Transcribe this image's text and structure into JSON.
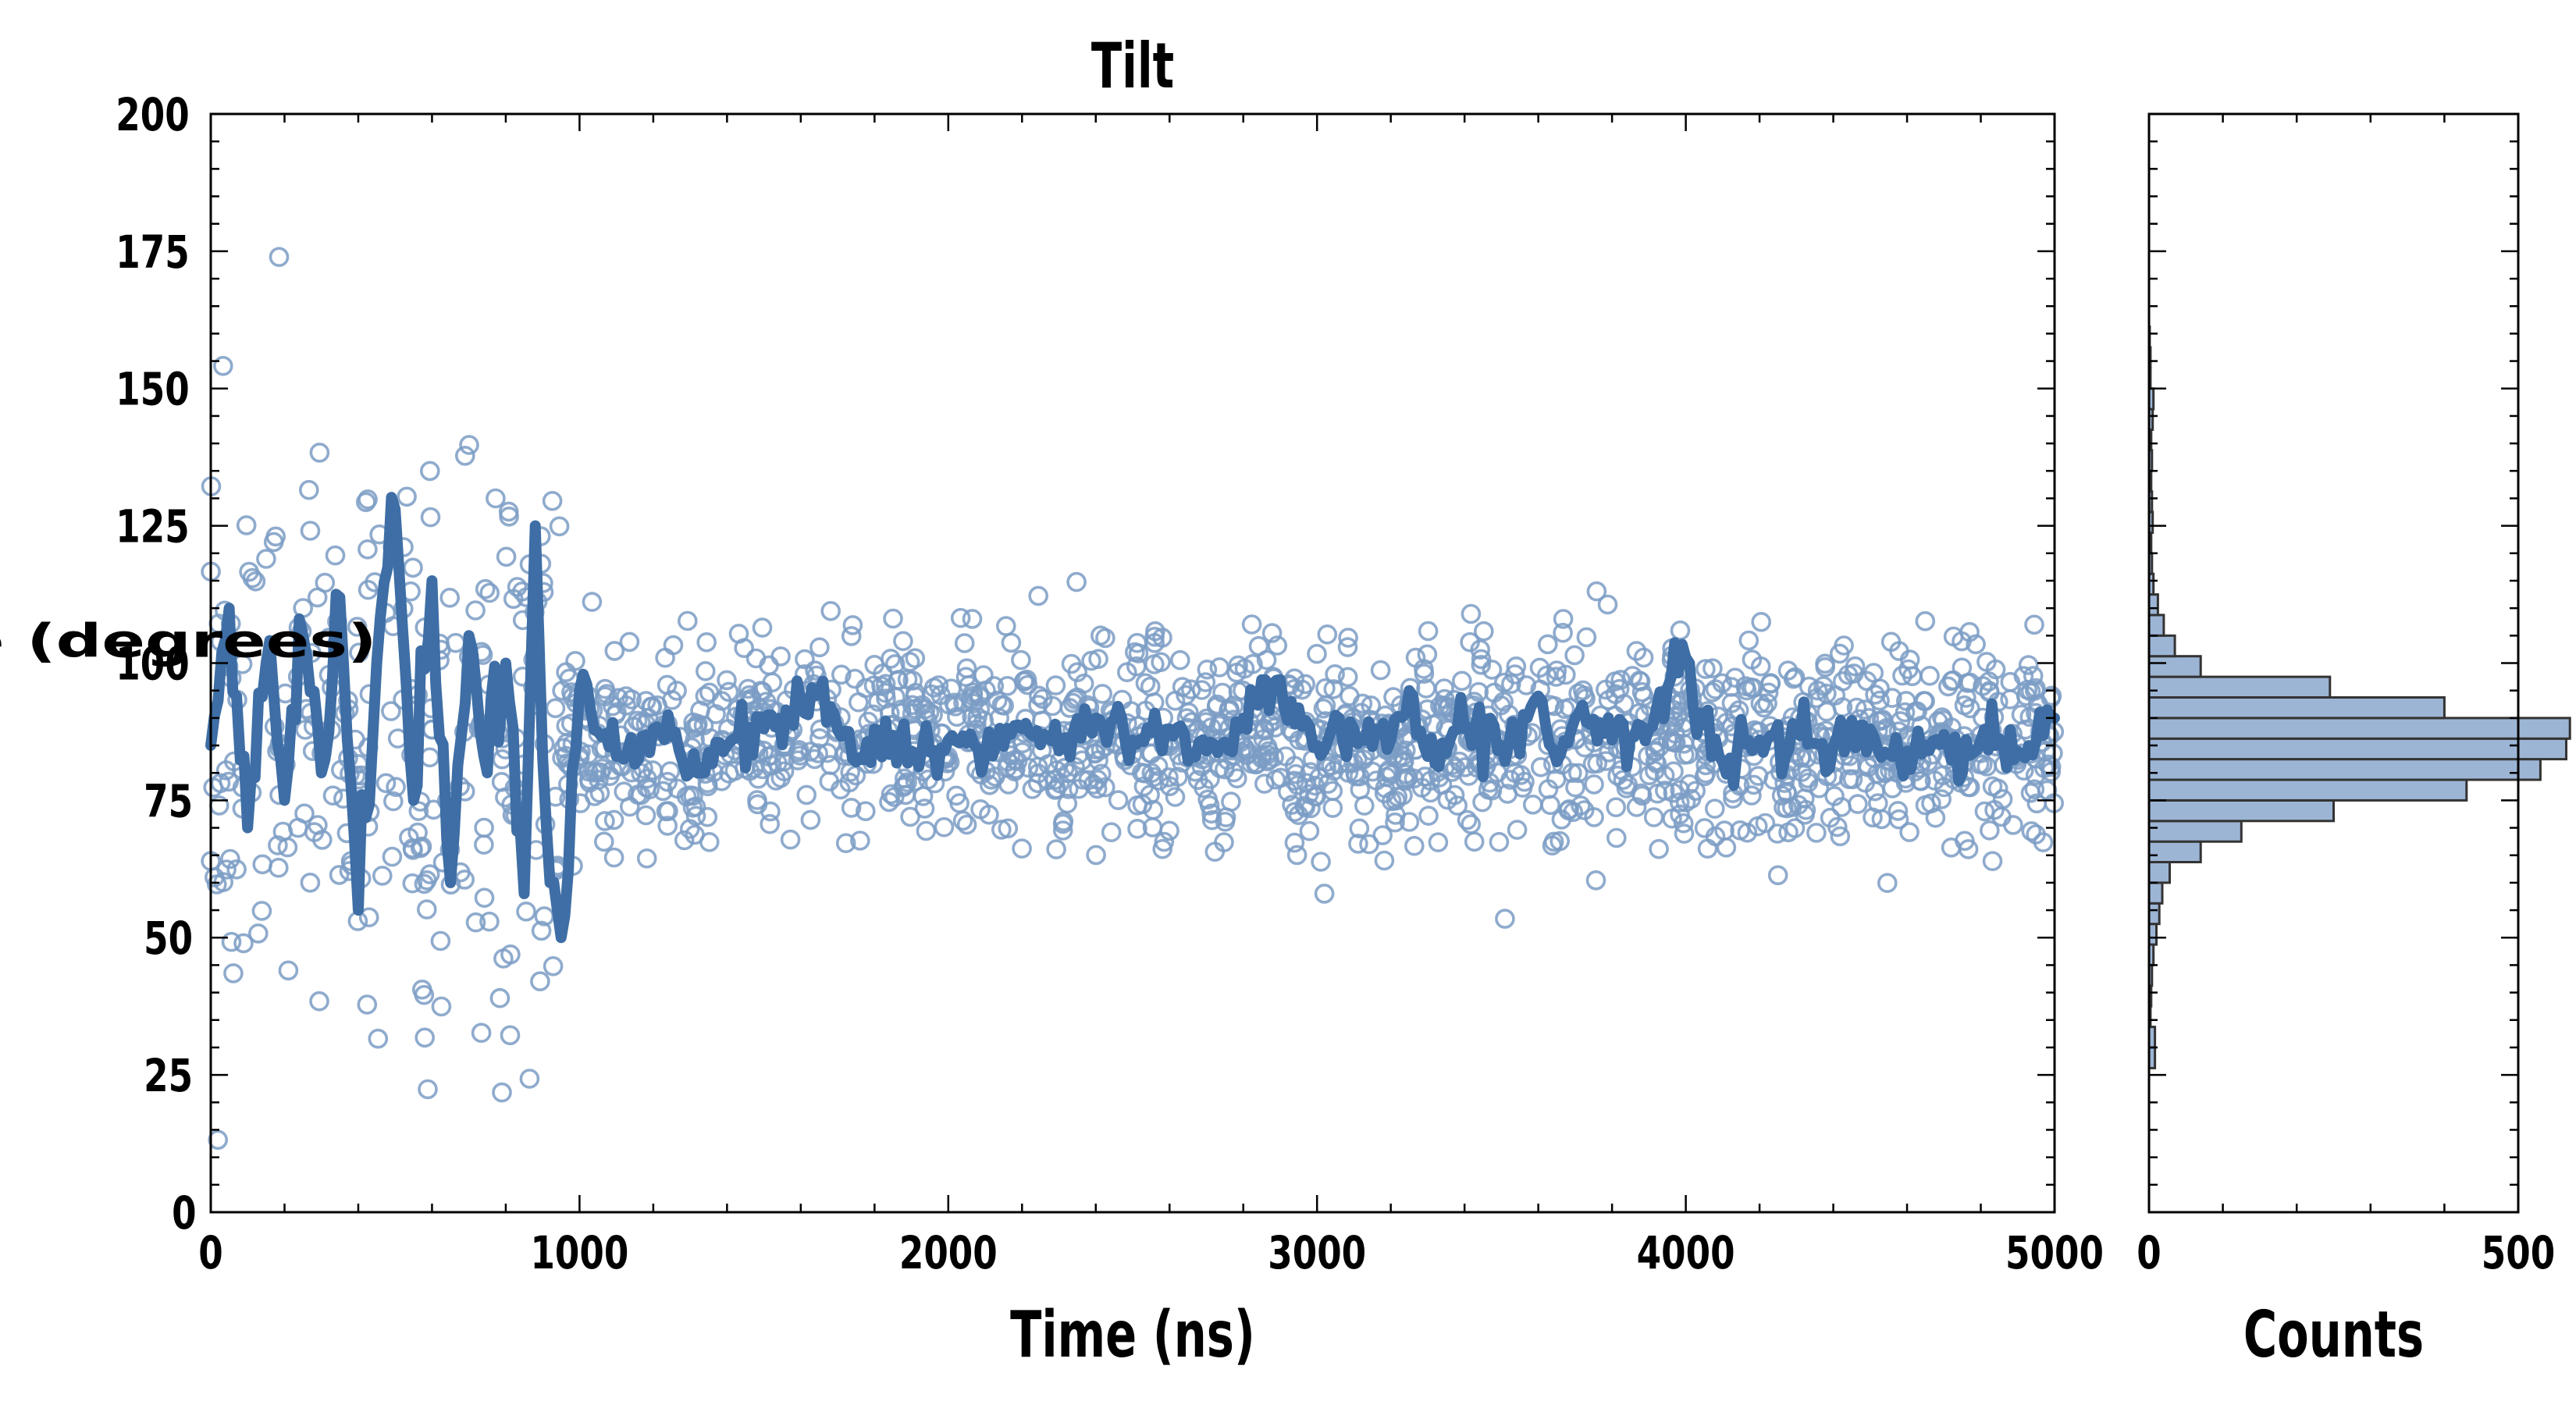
{
  "chart_data": [
    {
      "type": "scatter",
      "title": "Tilt",
      "xlabel": "Time (ns)",
      "ylabel": "Angle (degrees)",
      "xlim": [
        0,
        5000
      ],
      "ylim": [
        0,
        200
      ],
      "xticks": [
        "0",
        "1000",
        "2000",
        "3000",
        "4000",
        "5000"
      ],
      "yticks": [
        "0",
        "25",
        "50",
        "75",
        "100",
        "125",
        "150",
        "175",
        "200"
      ],
      "series": [
        {
          "kind": "scatter",
          "marker": "open-circle",
          "color": "#7b9cc4",
          "segments": [
            {
              "x_range": [
                0,
                950
              ],
              "approx_count": 260,
              "mean": 87,
              "spread": 40,
              "min": 10,
              "max": 175
            },
            {
              "x_range": [
                950,
                5000
              ],
              "approx_count": 1500,
              "mean": 86,
              "spread": 9,
              "min": 48,
              "max": 115
            }
          ]
        },
        {
          "kind": "line",
          "color": "#3e6ea5",
          "x": [
            0,
            50,
            100,
            150,
            200,
            250,
            300,
            350,
            400,
            450,
            500,
            550,
            600,
            650,
            700,
            750,
            800,
            850,
            880,
            920,
            950,
            1000,
            1100,
            1200,
            1300,
            1400,
            1500,
            1650,
            1750,
            1800,
            1900,
            2000,
            2100,
            2200,
            2300,
            2400,
            2500,
            2600,
            2700,
            2800,
            2900,
            3000,
            3100,
            3200,
            3250,
            3300,
            3400,
            3500,
            3600,
            3650,
            3700,
            3800,
            3900,
            4000,
            4020,
            4100,
            4200,
            4300,
            4400,
            4500,
            4600,
            4700,
            4750,
            4800,
            4900,
            5000
          ],
          "y": [
            85,
            110,
            70,
            100,
            75,
            105,
            80,
            112,
            55,
            100,
            128,
            75,
            115,
            60,
            105,
            80,
            100,
            58,
            125,
            60,
            50,
            95,
            83,
            88,
            80,
            85,
            88,
            95,
            82,
            88,
            84,
            86,
            83,
            88,
            84,
            90,
            86,
            88,
            84,
            90,
            97,
            85,
            88,
            86,
            95,
            83,
            88,
            85,
            94,
            82,
            90,
            86,
            88,
            101,
            92,
            82,
            86,
            88,
            85,
            88,
            84,
            87,
            80,
            86,
            84,
            90
          ]
        }
      ]
    },
    {
      "type": "bar",
      "orientation": "horizontal",
      "xlabel": "Counts",
      "ylabel": "",
      "xlim": [
        0,
        500
      ],
      "ylim": [
        0,
        200
      ],
      "xticks": [
        "0",
        "500"
      ],
      "color": "#9cb5d4",
      "bin_width": 3.75,
      "bin_starts": [
        26.25,
        30,
        33.75,
        37.5,
        41.25,
        45,
        48.75,
        52.5,
        56.25,
        60,
        63.75,
        67.5,
        71.25,
        75,
        78.75,
        82.5,
        86.25,
        90,
        93.75,
        97.5,
        101.25,
        105,
        108.75,
        112.5,
        116.25,
        120,
        123.75,
        127.5,
        131.25,
        135,
        138.75,
        142.5,
        146.25,
        150,
        153.75,
        157.5
      ],
      "counts": [
        8,
        8,
        2,
        3,
        4,
        6,
        10,
        14,
        18,
        28,
        70,
        125,
        250,
        430,
        530,
        565,
        570,
        400,
        245,
        70,
        35,
        20,
        12,
        6,
        4,
        3,
        5,
        4,
        3,
        4,
        3,
        5,
        6,
        2,
        2,
        1
      ]
    }
  ]
}
